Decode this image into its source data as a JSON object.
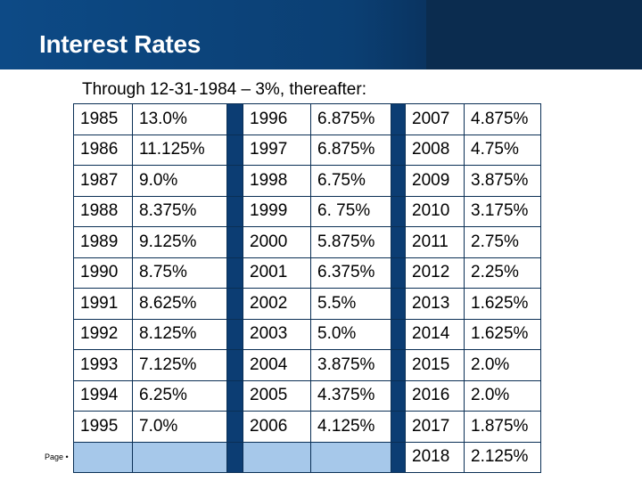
{
  "header": {
    "title": "Interest Rates"
  },
  "subtitle": "Through 12-31-1984 – 3%, thereafter:",
  "table": {
    "rows": [
      [
        {
          "year": "1985",
          "rate": "13.0%"
        },
        {
          "year": "1996",
          "rate": "6.875%"
        },
        {
          "year": "2007",
          "rate": "4.875%"
        }
      ],
      [
        {
          "year": "1986",
          "rate": "11.125%"
        },
        {
          "year": "1997",
          "rate": "6.875%"
        },
        {
          "year": "2008",
          "rate": "4.75%"
        }
      ],
      [
        {
          "year": "1987",
          "rate": "9.0%"
        },
        {
          "year": "1998",
          "rate": "6.75%"
        },
        {
          "year": "2009",
          "rate": "3.875%"
        }
      ],
      [
        {
          "year": "1988",
          "rate": "8.375%"
        },
        {
          "year": "1999",
          "rate": "6. 75%"
        },
        {
          "year": "2010",
          "rate": "3.175%"
        }
      ],
      [
        {
          "year": "1989",
          "rate": "9.125%"
        },
        {
          "year": "2000",
          "rate": "5.875%"
        },
        {
          "year": "2011",
          "rate": "2.75%"
        }
      ],
      [
        {
          "year": "1990",
          "rate": "8.75%"
        },
        {
          "year": "2001",
          "rate": "6.375%"
        },
        {
          "year": "2012",
          "rate": "2.25%"
        }
      ],
      [
        {
          "year": "1991",
          "rate": "8.625%"
        },
        {
          "year": "2002",
          "rate": "5.5%"
        },
        {
          "year": "2013",
          "rate": "1.625%"
        }
      ],
      [
        {
          "year": "1992",
          "rate": "8.125%"
        },
        {
          "year": "2003",
          "rate": "5.0%"
        },
        {
          "year": "2014",
          "rate": "1.625%"
        }
      ],
      [
        {
          "year": "1993",
          "rate": "7.125%"
        },
        {
          "year": "2004",
          "rate": "3.875%"
        },
        {
          "year": "2015",
          "rate": "2.0%"
        }
      ],
      [
        {
          "year": "1994",
          "rate": "6.25%"
        },
        {
          "year": "2005",
          "rate": "4.375%"
        },
        {
          "year": "2016",
          "rate": "2.0%"
        }
      ],
      [
        {
          "year": "1995",
          "rate": "7.0%"
        },
        {
          "year": "2006",
          "rate": "4.125%"
        },
        {
          "year": "2017",
          "rate": "1.875%"
        }
      ],
      [
        null,
        null,
        {
          "year": "2018",
          "rate": "2.125%"
        }
      ]
    ]
  },
  "footer": {
    "page_label": "Page •"
  }
}
